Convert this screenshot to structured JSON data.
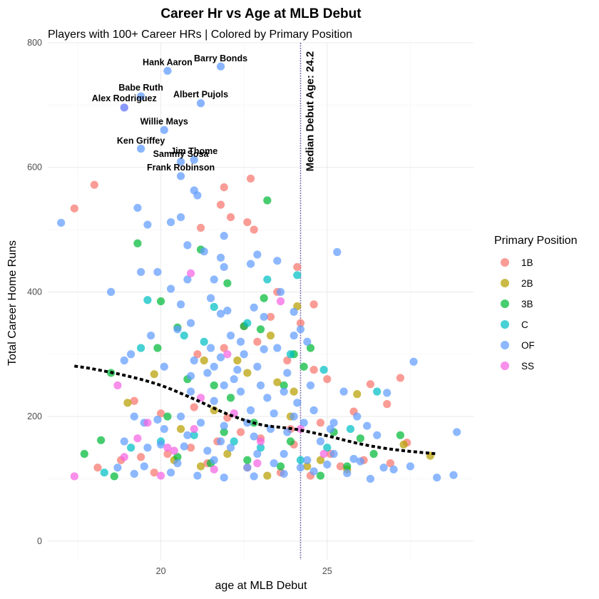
{
  "chart_data": {
    "type": "scatter",
    "title": "Career Hr vs Age at MLB Debut",
    "subtitle": "Players with 100+ Career HRs | Colored by Primary Position",
    "xlabel": "age at MLB Debut",
    "ylabel": "Total Career Home Runs",
    "xlim": [
      16.6,
      29.4
    ],
    "ylim": [
      -30,
      800
    ],
    "x_ticks": [
      20,
      25
    ],
    "y_ticks": [
      0,
      200,
      400,
      600,
      800
    ],
    "grid": true,
    "legend": {
      "title": "Primary Position",
      "placement": "right",
      "items": [
        {
          "name": "1B",
          "color": "#F8766D"
        },
        {
          "name": "2B",
          "color": "#B79F00"
        },
        {
          "name": "3B",
          "color": "#00BA38"
        },
        {
          "name": "C",
          "color": "#00BFC4"
        },
        {
          "name": "OF",
          "color": "#619CFF"
        },
        {
          "name": "SS",
          "color": "#F564E3"
        }
      ]
    },
    "median_line": {
      "x": 24.2,
      "label": "Median Debut Age: 24.2"
    },
    "trend": {
      "x": [
        17.4,
        18.0,
        19.0,
        20.0,
        21.0,
        22.0,
        23.0,
        24.0,
        25.0,
        26.0,
        27.0,
        28.3
      ],
      "y": [
        281,
        276,
        265,
        250,
        228,
        204,
        187,
        180,
        169,
        156,
        147,
        140
      ]
    },
    "labeled_players": [
      {
        "name": "Barry Bonds",
        "x": 21.8,
        "y": 762
      },
      {
        "name": "Hank Aaron",
        "x": 20.2,
        "y": 755
      },
      {
        "name": "Babe Ruth",
        "x": 19.4,
        "y": 714
      },
      {
        "name": "Alex Rodriguez",
        "x": 18.9,
        "y": 696
      },
      {
        "name": "Albert Pujols",
        "x": 21.2,
        "y": 703
      },
      {
        "name": "Willie Mays",
        "x": 20.1,
        "y": 660
      },
      {
        "name": "Ken Griffey",
        "x": 19.4,
        "y": 630
      },
      {
        "name": "Jim Thome",
        "x": 21.0,
        "y": 612
      },
      {
        "name": "Sammy Sosa",
        "x": 20.6,
        "y": 609
      },
      {
        "name": "Frank Robinson",
        "x": 20.6,
        "y": 586
      }
    ],
    "series": [
      {
        "name": "1B",
        "points": [
          [
            17.4,
            534
          ],
          [
            18.0,
            572
          ],
          [
            21.9,
            568
          ],
          [
            22.7,
            582
          ],
          [
            21.8,
            540
          ],
          [
            22.1,
            520
          ],
          [
            21.2,
            503
          ],
          [
            22.6,
            512
          ],
          [
            22.8,
            500
          ],
          [
            24.1,
            440
          ],
          [
            23.5,
            400
          ],
          [
            24.6,
            380
          ],
          [
            24.2,
            350
          ],
          [
            23.3,
            360
          ],
          [
            22.5,
            345
          ],
          [
            22.9,
            320
          ],
          [
            21.9,
            310
          ],
          [
            21.1,
            300
          ],
          [
            23.8,
            290
          ],
          [
            24.6,
            275
          ],
          [
            25.0,
            260
          ],
          [
            26.3,
            252
          ],
          [
            27.2,
            262
          ],
          [
            26.8,
            220
          ],
          [
            25.8,
            208
          ],
          [
            24.8,
            190
          ],
          [
            23.9,
            180
          ],
          [
            22.4,
            175
          ],
          [
            21.7,
            160
          ],
          [
            20.9,
            150
          ],
          [
            20.2,
            140
          ],
          [
            19.4,
            135
          ],
          [
            18.8,
            130
          ],
          [
            18.1,
            118
          ],
          [
            19.8,
            110
          ],
          [
            21.4,
            125
          ],
          [
            22.6,
            118
          ],
          [
            23.6,
            110
          ],
          [
            24.5,
            105
          ],
          [
            25.4,
            120
          ],
          [
            26.1,
            130
          ],
          [
            26.9,
            125
          ],
          [
            27.4,
            158
          ],
          [
            25.1,
            140
          ],
          [
            24.0,
            155
          ],
          [
            23.0,
            165
          ],
          [
            22.0,
            198
          ],
          [
            21.0,
            215
          ],
          [
            20.0,
            205
          ],
          [
            19.2,
            225
          ]
        ]
      },
      {
        "name": "2B",
        "points": [
          [
            19.0,
            222
          ],
          [
            19.8,
            268
          ],
          [
            21.3,
            290
          ],
          [
            22.3,
            290
          ],
          [
            23.3,
            330
          ],
          [
            24.1,
            377
          ],
          [
            23.5,
            255
          ],
          [
            24.0,
            240
          ],
          [
            25.9,
            236
          ],
          [
            27.3,
            155
          ],
          [
            28.1,
            137
          ],
          [
            22.6,
            270
          ],
          [
            21.6,
            210
          ],
          [
            20.6,
            180
          ],
          [
            23.9,
            200
          ],
          [
            24.8,
            130
          ],
          [
            25.6,
            115
          ],
          [
            22.0,
            140
          ],
          [
            21.2,
            120
          ],
          [
            20.4,
            130
          ],
          [
            23.2,
            105
          ],
          [
            24.4,
            120
          ]
        ]
      },
      {
        "name": "3B",
        "points": [
          [
            19.3,
            478
          ],
          [
            20.0,
            385
          ],
          [
            20.5,
            343
          ],
          [
            21.2,
            468
          ],
          [
            23.2,
            547
          ],
          [
            22.5,
            345
          ],
          [
            23.0,
            340
          ],
          [
            23.1,
            390
          ],
          [
            22.0,
            414
          ],
          [
            24.5,
            310
          ],
          [
            24.0,
            300
          ],
          [
            21.6,
            250
          ],
          [
            20.8,
            260
          ],
          [
            19.9,
            310
          ],
          [
            18.5,
            270
          ],
          [
            18.2,
            162
          ],
          [
            17.7,
            140
          ],
          [
            18.6,
            104
          ],
          [
            22.1,
            230
          ],
          [
            23.7,
            250
          ],
          [
            24.3,
            280
          ],
          [
            25.2,
            175
          ],
          [
            26.0,
            165
          ],
          [
            27.2,
            170
          ],
          [
            26.4,
            140
          ],
          [
            25.6,
            120
          ],
          [
            24.8,
            105
          ],
          [
            23.6,
            120
          ],
          [
            22.6,
            130
          ],
          [
            21.5,
            125
          ],
          [
            20.5,
            135
          ],
          [
            20.2,
            200
          ],
          [
            21.9,
            175
          ],
          [
            22.8,
            190
          ],
          [
            23.9,
            160
          ]
        ]
      },
      {
        "name": "C",
        "points": [
          [
            24.1,
            427
          ],
          [
            23.2,
            420
          ],
          [
            21.6,
            376
          ],
          [
            19.6,
            387
          ],
          [
            21.3,
            320
          ],
          [
            22.6,
            350
          ],
          [
            23.9,
            300
          ],
          [
            24.9,
            275
          ],
          [
            25.7,
            180
          ],
          [
            26.5,
            240
          ],
          [
            25.0,
            150
          ],
          [
            24.2,
            130
          ],
          [
            23.0,
            150
          ],
          [
            22.2,
            160
          ],
          [
            21.0,
            170
          ],
          [
            20.0,
            160
          ],
          [
            19.1,
            150
          ],
          [
            18.3,
            110
          ],
          [
            19.4,
            310
          ],
          [
            20.7,
            330
          ]
        ]
      },
      {
        "name": "OF",
        "points": [
          [
            17.0,
            511
          ],
          [
            19.3,
            535
          ],
          [
            19.6,
            508
          ],
          [
            20.3,
            512
          ],
          [
            20.6,
            520
          ],
          [
            21.0,
            563
          ],
          [
            21.1,
            555
          ],
          [
            21.9,
            490
          ],
          [
            20.8,
            475
          ],
          [
            21.3,
            465
          ],
          [
            21.8,
            455
          ],
          [
            21.9,
            440
          ],
          [
            22.7,
            445
          ],
          [
            22.9,
            460
          ],
          [
            23.5,
            450
          ],
          [
            25.3,
            464
          ],
          [
            18.5,
            400
          ],
          [
            19.4,
            432
          ],
          [
            19.9,
            432
          ],
          [
            20.6,
            380
          ],
          [
            21.6,
            420
          ],
          [
            21.5,
            390
          ],
          [
            22.0,
            370
          ],
          [
            22.8,
            375
          ],
          [
            23.1,
            360
          ],
          [
            23.6,
            400
          ],
          [
            24.0,
            368
          ],
          [
            24.2,
            340
          ],
          [
            24.4,
            320
          ],
          [
            24.0,
            330
          ],
          [
            23.5,
            310
          ],
          [
            23.1,
            308
          ],
          [
            22.5,
            300
          ],
          [
            21.8,
            295
          ],
          [
            21.0,
            290
          ],
          [
            20.5,
            340
          ],
          [
            19.7,
            330
          ],
          [
            19.1,
            300
          ],
          [
            18.9,
            290
          ],
          [
            20.1,
            280
          ],
          [
            21.4,
            270
          ],
          [
            22.2,
            260
          ],
          [
            23.0,
            250
          ],
          [
            23.7,
            240
          ],
          [
            24.5,
            250
          ],
          [
            25.5,
            240
          ],
          [
            26.8,
            238
          ],
          [
            27.6,
            288
          ],
          [
            27.5,
            120
          ],
          [
            28.3,
            102
          ],
          [
            28.8,
            106
          ],
          [
            28.9,
            175
          ],
          [
            26.5,
            170
          ],
          [
            25.9,
            200
          ],
          [
            25.2,
            190
          ],
          [
            24.6,
            210
          ],
          [
            24.0,
            200
          ],
          [
            23.3,
            180
          ],
          [
            22.6,
            190
          ],
          [
            21.9,
            185
          ],
          [
            21.2,
            190
          ],
          [
            20.6,
            200
          ],
          [
            19.9,
            195
          ],
          [
            19.2,
            200
          ],
          [
            18.9,
            160
          ],
          [
            19.5,
            120
          ],
          [
            20.3,
            110
          ],
          [
            21.1,
            105
          ],
          [
            21.9,
            102
          ],
          [
            22.8,
            104
          ],
          [
            23.7,
            108
          ],
          [
            24.6,
            112
          ],
          [
            25.6,
            109
          ],
          [
            26.3,
            100
          ],
          [
            27.0,
            115
          ],
          [
            26.0,
            128
          ],
          [
            25.2,
            140
          ],
          [
            24.4,
            130
          ],
          [
            23.7,
            140
          ],
          [
            22.9,
            140
          ],
          [
            22.1,
            150
          ],
          [
            21.4,
            145
          ],
          [
            20.7,
            152
          ],
          [
            20.0,
            155
          ],
          [
            19.6,
            150
          ],
          [
            19.2,
            108
          ],
          [
            18.7,
            118
          ],
          [
            20.5,
            125
          ],
          [
            21.6,
            130
          ],
          [
            22.6,
            118
          ],
          [
            23.4,
            125
          ],
          [
            24.2,
            118
          ],
          [
            25.0,
            123
          ],
          [
            25.8,
            132
          ],
          [
            26.7,
            118
          ],
          [
            24.8,
            160
          ],
          [
            23.8,
            175
          ],
          [
            22.8,
            168
          ],
          [
            21.8,
            160
          ],
          [
            20.8,
            170
          ],
          [
            20.1,
            180
          ],
          [
            19.5,
            190
          ],
          [
            21.6,
            225
          ],
          [
            22.7,
            210
          ],
          [
            23.4,
            205
          ],
          [
            24.3,
            190
          ],
          [
            25.1,
            180
          ],
          [
            26.2,
            185
          ],
          [
            20.9,
            240
          ],
          [
            21.9,
            250
          ],
          [
            22.4,
            240
          ],
          [
            23.2,
            230
          ],
          [
            24.1,
            222
          ],
          [
            22.1,
            330
          ],
          [
            20.9,
            350
          ],
          [
            21.8,
            365
          ],
          [
            22.4,
            320
          ],
          [
            21.5,
            310
          ],
          [
            20.8,
            420
          ],
          [
            20.3,
            405
          ],
          [
            22.9,
            280
          ],
          [
            23.8,
            270
          ],
          [
            21.6,
            280
          ],
          [
            20.9,
            265
          ],
          [
            22.3,
            275
          ]
        ]
      },
      {
        "name": "SS",
        "points": [
          [
            18.9,
            696
          ],
          [
            17.4,
            104
          ],
          [
            18.7,
            250
          ],
          [
            18.9,
            135
          ],
          [
            19.3,
            165
          ],
          [
            20.0,
            105
          ],
          [
            20.9,
            430
          ],
          [
            23.6,
            385
          ],
          [
            22.0,
            300
          ],
          [
            21.2,
            230
          ],
          [
            22.2,
            205
          ],
          [
            21.0,
            180
          ],
          [
            20.2,
            150
          ],
          [
            23.0,
            160
          ],
          [
            24.2,
            180
          ],
          [
            24.9,
            140
          ],
          [
            21.6,
            115
          ],
          [
            22.9,
            125
          ],
          [
            19.6,
            190
          ],
          [
            20.4,
            145
          ]
        ]
      }
    ]
  }
}
